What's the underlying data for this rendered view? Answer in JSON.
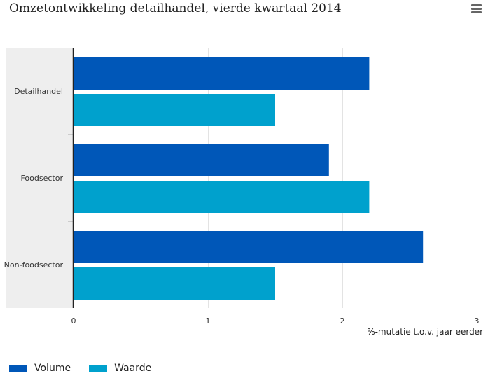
{
  "title": "Omzetontwikkeling detailhandel, vierde kwartaal 2014",
  "menu_icon": "hamburger-menu-icon",
  "chart_data": {
    "type": "bar",
    "orientation": "horizontal",
    "title": "Omzetontwikkeling detailhandel, vierde kwartaal 2014",
    "categories": [
      "Detailhandel",
      "Foodsector",
      "Non-foodsector"
    ],
    "series": [
      {
        "name": "Volume",
        "color": "#0057b8",
        "values": [
          2.2,
          1.9,
          2.6
        ]
      },
      {
        "name": "Waarde",
        "color": "#00a1cd",
        "values": [
          1.5,
          2.2,
          1.5
        ]
      }
    ],
    "xlabel": "%-mutatie t.o.v. jaar eerder",
    "ylabel": "",
    "xlim": [
      0,
      3
    ],
    "ticks": [
      "0",
      "1",
      "2",
      "3"
    ],
    "grid": true,
    "legend": "bottom-left"
  }
}
